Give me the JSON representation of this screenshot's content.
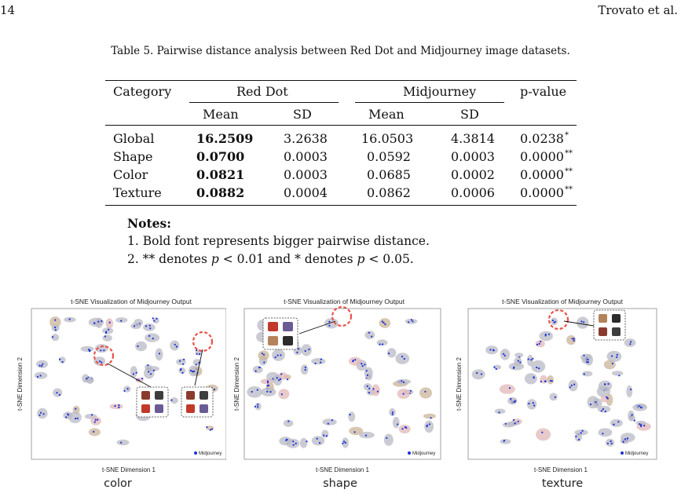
{
  "header": {
    "page_number": "14",
    "authors": "Trovato et al."
  },
  "table": {
    "caption": "Table 5. Pairwise distance analysis between Red Dot and Midjourney image datasets.",
    "headers": {
      "category": "Category",
      "group1": "Red Dot",
      "group2": "Midjourney",
      "pvalue": "p-value",
      "mean": "Mean",
      "sd": "SD"
    },
    "rows": [
      {
        "category": "Global",
        "rd_mean": "16.2509",
        "rd_sd": "3.2638",
        "mj_mean": "16.0503",
        "mj_sd": "4.3814",
        "p": "0.0238",
        "sig": "*"
      },
      {
        "category": "Shape",
        "rd_mean": "0.0700",
        "rd_sd": "0.0003",
        "mj_mean": "0.0592",
        "mj_sd": "0.0003",
        "p": "0.0000",
        "sig": "**"
      },
      {
        "category": "Color",
        "rd_mean": "0.0821",
        "rd_sd": "0.0003",
        "mj_mean": "0.0685",
        "mj_sd": "0.0002",
        "p": "0.0000",
        "sig": "**"
      },
      {
        "category": "Texture",
        "rd_mean": "0.0882",
        "rd_sd": "0.0004",
        "mj_mean": "0.0862",
        "mj_sd": "0.0006",
        "p": "0.0000",
        "sig": "**"
      }
    ]
  },
  "notes": {
    "title": "Notes:",
    "line1": "1. Bold font represents bigger pairwise distance.",
    "line2_a": "2. ** denotes ",
    "line2_b": "p",
    "line2_c": " < 0.01 and * denotes ",
    "line2_d": "p",
    "line2_e": " < 0.05."
  },
  "figures": [
    {
      "title": "t-SNE Visualization of Midjourney Output",
      "xlabel": "t-SNE Dimension 1",
      "ylabel": "t-SNE Dimension 2",
      "legend": "Midjourney",
      "caption": "color"
    },
    {
      "title": "t-SNE Visualization of Midjourney Output",
      "xlabel": "t-SNE Dimension 1",
      "ylabel": "t-SNE Dimension 2",
      "legend": "Midjourney",
      "caption": "shape"
    },
    {
      "title": "t-SNE Visualization of Midjourney Output",
      "xlabel": "t-SNE Dimension 1",
      "ylabel": "t-SNE Dimension 2",
      "legend": "Midjourney",
      "caption": "texture"
    }
  ],
  "colors": {
    "point": "#1a2fd6",
    "highlight": "#e8534a",
    "cluster": "#b9b9c6"
  }
}
